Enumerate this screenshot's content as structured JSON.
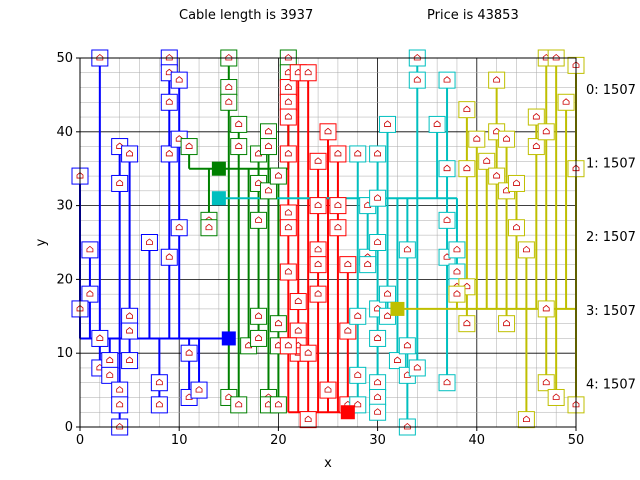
{
  "header": {
    "cable_label": "Cable length is 3937",
    "price_label": "Price is 43853"
  },
  "chart_data": {
    "type": "scatter",
    "xlabel": "x",
    "ylabel": "y",
    "xlim": [
      0,
      50
    ],
    "ylim": [
      0,
      50
    ],
    "x_major_ticks": [
      0,
      10,
      20,
      30,
      40,
      50
    ],
    "y_major_ticks": [
      0,
      10,
      20,
      30,
      40,
      50
    ],
    "minor_grid_step": 2,
    "grid": true,
    "house_icon": "house-icon",
    "colors": {
      "0": "#0000ff",
      "1": "#008000",
      "2": "#ff0000",
      "3": "#00bfbf",
      "4": "#bfbf00",
      "grid_major": "#000000",
      "grid_minor": "#aaaaaa"
    },
    "side_labels": [
      "0: 1507",
      "1: 1507",
      "2: 1507",
      "3: 1507",
      "4: 1507"
    ],
    "batteries": [
      {
        "series": 0,
        "x": 15,
        "y": 12
      },
      {
        "series": 1,
        "x": 14,
        "y": 35
      },
      {
        "series": 2,
        "x": 27,
        "y": 2
      },
      {
        "series": 3,
        "x": 14,
        "y": 31
      },
      {
        "series": 4,
        "x": 32,
        "y": 16
      }
    ],
    "series": [
      {
        "index": 0,
        "hub_y": 12,
        "houses": [
          [
            2,
            50
          ],
          [
            4,
            38
          ],
          [
            4,
            33
          ],
          [
            5,
            37
          ],
          [
            0,
            34
          ],
          [
            1,
            24
          ],
          [
            1,
            18
          ],
          [
            0,
            16
          ],
          [
            2,
            12
          ],
          [
            2,
            8
          ],
          [
            3,
            9
          ],
          [
            3,
            7
          ],
          [
            4,
            5
          ],
          [
            4,
            3
          ],
          [
            4,
            0
          ],
          [
            5,
            15
          ],
          [
            5,
            13
          ],
          [
            5,
            9
          ],
          [
            7,
            25
          ],
          [
            8,
            6
          ],
          [
            8,
            3
          ],
          [
            9,
            50
          ],
          [
            9,
            48
          ],
          [
            10,
            47
          ],
          [
            9,
            44
          ],
          [
            9,
            37
          ],
          [
            10,
            39
          ],
          [
            10,
            27
          ],
          [
            9,
            23
          ],
          [
            11,
            10
          ],
          [
            11,
            4
          ],
          [
            12,
            5
          ]
        ]
      },
      {
        "index": 1,
        "hub_y": 35,
        "houses": [
          [
            15,
            50
          ],
          [
            15,
            46
          ],
          [
            15,
            44
          ],
          [
            16,
            41
          ],
          [
            16,
            38
          ],
          [
            11,
            38
          ],
          [
            13,
            28
          ],
          [
            13,
            27
          ],
          [
            15,
            4
          ],
          [
            16,
            3
          ],
          [
            17,
            11
          ],
          [
            18,
            15
          ],
          [
            18,
            12
          ],
          [
            18,
            28
          ],
          [
            18,
            33
          ],
          [
            19,
            32
          ],
          [
            18,
            37
          ],
          [
            19,
            40
          ],
          [
            19,
            38
          ],
          [
            20,
            34
          ],
          [
            19,
            4
          ],
          [
            19,
            3
          ],
          [
            20,
            3
          ],
          [
            20,
            14
          ],
          [
            20,
            11
          ],
          [
            21,
            50
          ],
          [
            21,
            48
          ]
        ]
      },
      {
        "index": 2,
        "hub_y": 2,
        "houses": [
          [
            21,
            46
          ],
          [
            21,
            44
          ],
          [
            21,
            42
          ],
          [
            21,
            37
          ],
          [
            21,
            29
          ],
          [
            21,
            27
          ],
          [
            22,
            48
          ],
          [
            22,
            17
          ],
          [
            22,
            13
          ],
          [
            22,
            10
          ],
          [
            22,
            11
          ],
          [
            23,
            48
          ],
          [
            23,
            10
          ],
          [
            23,
            1
          ],
          [
            24,
            36
          ],
          [
            24,
            30
          ],
          [
            24,
            24
          ],
          [
            24,
            22
          ],
          [
            24,
            18
          ],
          [
            25,
            40
          ],
          [
            25,
            5
          ],
          [
            26,
            37
          ],
          [
            26,
            30
          ],
          [
            26,
            27
          ],
          [
            27,
            22
          ],
          [
            27,
            13
          ],
          [
            27,
            3
          ],
          [
            21,
            21
          ],
          [
            21,
            11
          ]
        ]
      },
      {
        "index": 3,
        "hub_y": 31,
        "houses": [
          [
            28,
            37
          ],
          [
            28,
            15
          ],
          [
            28,
            3
          ],
          [
            28,
            7
          ],
          [
            29,
            23
          ],
          [
            29,
            22
          ],
          [
            29,
            30
          ],
          [
            30,
            37
          ],
          [
            30,
            31
          ],
          [
            30,
            25
          ],
          [
            30,
            16
          ],
          [
            30,
            12
          ],
          [
            30,
            6
          ],
          [
            30,
            4
          ],
          [
            30,
            2
          ],
          [
            31,
            41
          ],
          [
            31,
            18
          ],
          [
            31,
            15
          ],
          [
            32,
            9
          ],
          [
            33,
            24
          ],
          [
            33,
            11
          ],
          [
            33,
            7
          ],
          [
            33,
            0
          ],
          [
            34,
            50
          ],
          [
            34,
            47
          ],
          [
            34,
            8
          ],
          [
            36,
            41
          ],
          [
            37,
            47
          ],
          [
            37,
            35
          ],
          [
            37,
            28
          ],
          [
            37,
            23
          ],
          [
            37,
            6
          ],
          [
            38,
            24
          ],
          [
            38,
            21
          ],
          [
            38,
            19
          ]
        ]
      },
      {
        "index": 4,
        "hub_y": 16,
        "houses": [
          [
            39,
            43
          ],
          [
            39,
            35
          ],
          [
            39,
            19
          ],
          [
            39,
            14
          ],
          [
            40,
            39
          ],
          [
            41,
            36
          ],
          [
            42,
            47
          ],
          [
            42,
            40
          ],
          [
            42,
            34
          ],
          [
            43,
            39
          ],
          [
            43,
            32
          ],
          [
            43,
            14
          ],
          [
            44,
            33
          ],
          [
            44,
            27
          ],
          [
            45,
            24
          ],
          [
            45,
            1
          ],
          [
            46,
            42
          ],
          [
            46,
            38
          ],
          [
            47,
            50
          ],
          [
            47,
            40
          ],
          [
            47,
            16
          ],
          [
            47,
            6
          ],
          [
            48,
            50
          ],
          [
            48,
            4
          ],
          [
            49,
            44
          ],
          [
            50,
            49
          ],
          [
            50,
            35
          ],
          [
            50,
            3
          ],
          [
            38,
            18
          ]
        ]
      }
    ]
  }
}
